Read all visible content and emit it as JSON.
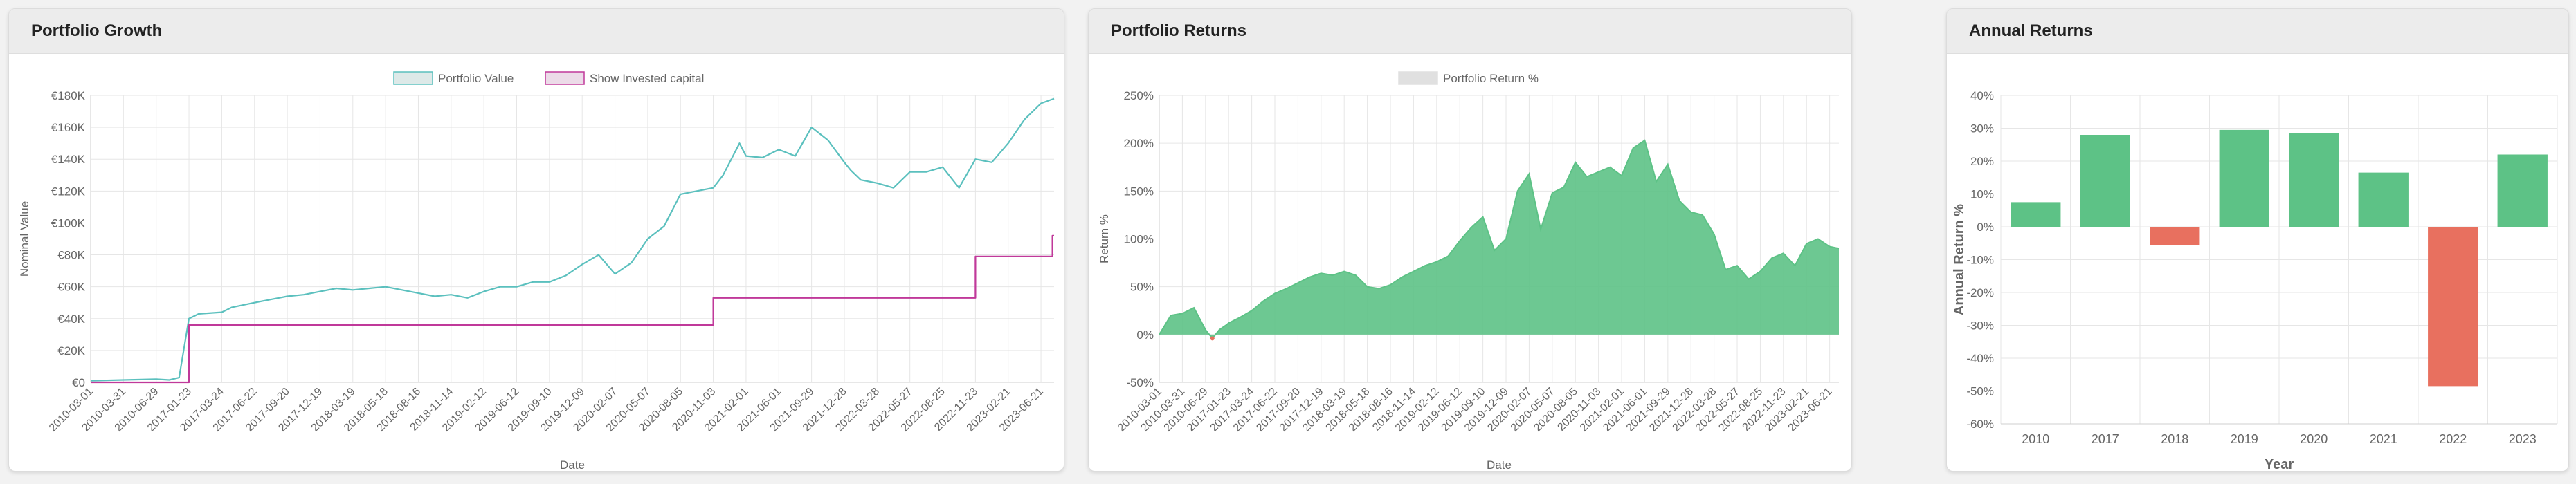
{
  "panels": {
    "growth": {
      "title": "Portfolio Growth"
    },
    "returns": {
      "title": "Portfolio Returns"
    },
    "annual": {
      "title": "Annual Returns"
    }
  },
  "colors": {
    "teal": "#5bc0be",
    "magenta": "#c0399a",
    "green": "#5dc286",
    "red": "#e8705f",
    "grid": "#e6e6e6",
    "legend_gray": "#e0e0e0"
  },
  "chart_data": [
    {
      "type": "line",
      "xlabel": "Date",
      "ylabel": "Nominal Value",
      "legend_position": "top",
      "legend": [
        "Portfolio Value",
        "Show Invested capital"
      ],
      "ylim": [
        0,
        180000
      ],
      "yticks": [
        "€0",
        "€20K",
        "€40K",
        "€60K",
        "€80K",
        "€100K",
        "€120K",
        "€140K",
        "€160K",
        "€180K"
      ],
      "x_tick_labels": [
        "2010-03-01",
        "2010-03-31",
        "2010-06-29",
        "2017-01-23",
        "2017-03-24",
        "2017-06-22",
        "2017-09-20",
        "2017-12-19",
        "2018-03-19",
        "2018-05-18",
        "2018-08-16",
        "2018-11-14",
        "2019-02-12",
        "2019-06-12",
        "2019-09-10",
        "2019-12-09",
        "2020-02-07",
        "2020-05-07",
        "2020-08-05",
        "2020-11-03",
        "2021-02-01",
        "2021-06-01",
        "2021-09-29",
        "2021-12-28",
        "2022-03-28",
        "2022-05-27",
        "2022-08-25",
        "2022-11-23",
        "2023-02-21",
        "2023-06-21"
      ],
      "series": [
        {
          "name": "Portfolio Value",
          "color": "#5bc0be",
          "x": [
            0,
            1,
            2,
            2.4,
            2.7,
            3,
            3.3,
            4,
            4.3,
            5,
            5.5,
            6,
            6.5,
            7,
            7.5,
            8,
            8.5,
            9,
            9.5,
            10,
            10.5,
            11,
            11.5,
            12,
            12.5,
            13,
            13.5,
            14,
            14.5,
            15,
            15.5,
            16,
            16.5,
            17,
            17.5,
            18,
            18.5,
            19,
            19.3,
            19.5,
            19.8,
            20,
            20.5,
            21,
            21.5,
            22,
            22.5,
            23,
            23.2,
            23.5,
            24,
            24.5,
            25,
            25.5,
            26,
            26.5,
            27,
            27.5,
            28,
            28.5,
            29,
            29.4
          ],
          "y": [
            1000,
            1500,
            2000,
            1500,
            3000,
            40000,
            43000,
            44000,
            47000,
            50000,
            52000,
            54000,
            55000,
            57000,
            59000,
            58000,
            59000,
            60000,
            58000,
            56000,
            54000,
            55000,
            53000,
            57000,
            60000,
            60000,
            63000,
            63000,
            67000,
            74000,
            80000,
            68000,
            75000,
            90000,
            98000,
            118000,
            120000,
            122000,
            130000,
            138000,
            150000,
            142000,
            141000,
            146000,
            142000,
            160000,
            152000,
            138000,
            133000,
            127000,
            125000,
            122000,
            132000,
            132000,
            135000,
            122000,
            140000,
            138000,
            150000,
            165000,
            175000,
            178000
          ]
        },
        {
          "name": "Show Invested capital",
          "color": "#c0399a",
          "step": true,
          "x": [
            0,
            3,
            3,
            19,
            19,
            27,
            27,
            29.35,
            29.35,
            29.4
          ],
          "y": [
            0,
            0,
            36000,
            36000,
            53000,
            53000,
            79000,
            79000,
            92000,
            92000
          ]
        }
      ]
    },
    {
      "type": "area",
      "xlabel": "Date",
      "ylabel": "Return %",
      "legend_position": "top",
      "legend": [
        "Portfolio Return %"
      ],
      "ylim": [
        -50,
        250
      ],
      "yticks": [
        "-50%",
        "0%",
        "50%",
        "100%",
        "150%",
        "200%",
        "250%"
      ],
      "x_tick_labels": [
        "2010-03-01",
        "2010-03-31",
        "2010-06-29",
        "2017-01-23",
        "2017-03-24",
        "2017-06-22",
        "2017-09-20",
        "2017-12-19",
        "2018-03-19",
        "2018-05-18",
        "2018-08-16",
        "2018-11-14",
        "2019-02-12",
        "2019-06-12",
        "2019-09-10",
        "2019-12-09",
        "2020-02-07",
        "2020-05-07",
        "2020-08-05",
        "2020-11-03",
        "2021-02-01",
        "2021-06-01",
        "2021-09-29",
        "2021-12-28",
        "2022-03-28",
        "2022-05-27",
        "2022-08-25",
        "2022-11-23",
        "2023-02-21",
        "2023-06-21"
      ],
      "series": [
        {
          "name": "Portfolio Return %",
          "color": "#5dc286",
          "x": [
            0,
            0.5,
            1,
            1.5,
            2,
            2.3,
            2.6,
            2.9,
            3,
            3.5,
            4,
            4.5,
            5,
            5.5,
            6,
            6.5,
            7,
            7.5,
            8,
            8.5,
            9,
            9.5,
            10,
            10.5,
            11,
            11.5,
            12,
            12.5,
            13,
            13.5,
            14,
            14.5,
            15,
            15.5,
            16,
            16.5,
            17,
            17.5,
            18,
            18.5,
            19,
            19.5,
            20,
            20.5,
            21,
            21.5,
            22,
            22.5,
            23,
            23.5,
            24,
            24.5,
            25,
            25.5,
            26,
            26.5,
            27,
            27.5,
            28,
            28.5,
            29,
            29.4
          ],
          "y": [
            0,
            20,
            22,
            28,
            5,
            -4,
            5,
            10,
            12,
            18,
            25,
            35,
            43,
            48,
            54,
            60,
            64,
            62,
            66,
            62,
            50,
            48,
            52,
            60,
            66,
            72,
            76,
            82,
            98,
            112,
            123,
            88,
            100,
            150,
            168,
            110,
            148,
            154,
            180,
            165,
            170,
            175,
            166,
            195,
            203,
            160,
            178,
            140,
            128,
            125,
            105,
            68,
            72,
            58,
            66,
            80,
            85,
            72,
            95,
            100,
            92,
            90
          ]
        }
      ]
    },
    {
      "type": "bar",
      "xlabel": "Year",
      "ylabel": "Annual Return %",
      "ylim": [
        -60,
        40
      ],
      "yticks": [
        "-60%",
        "-50%",
        "-40%",
        "-30%",
        "-20%",
        "-10%",
        "0%",
        "10%",
        "20%",
        "30%",
        "40%"
      ],
      "categories": [
        "2010",
        "2017",
        "2018",
        "2019",
        "2020",
        "2021",
        "2022",
        "2023"
      ],
      "values": [
        7.5,
        28,
        -5.5,
        29.5,
        28.5,
        16.5,
        -48.5,
        22
      ]
    }
  ]
}
